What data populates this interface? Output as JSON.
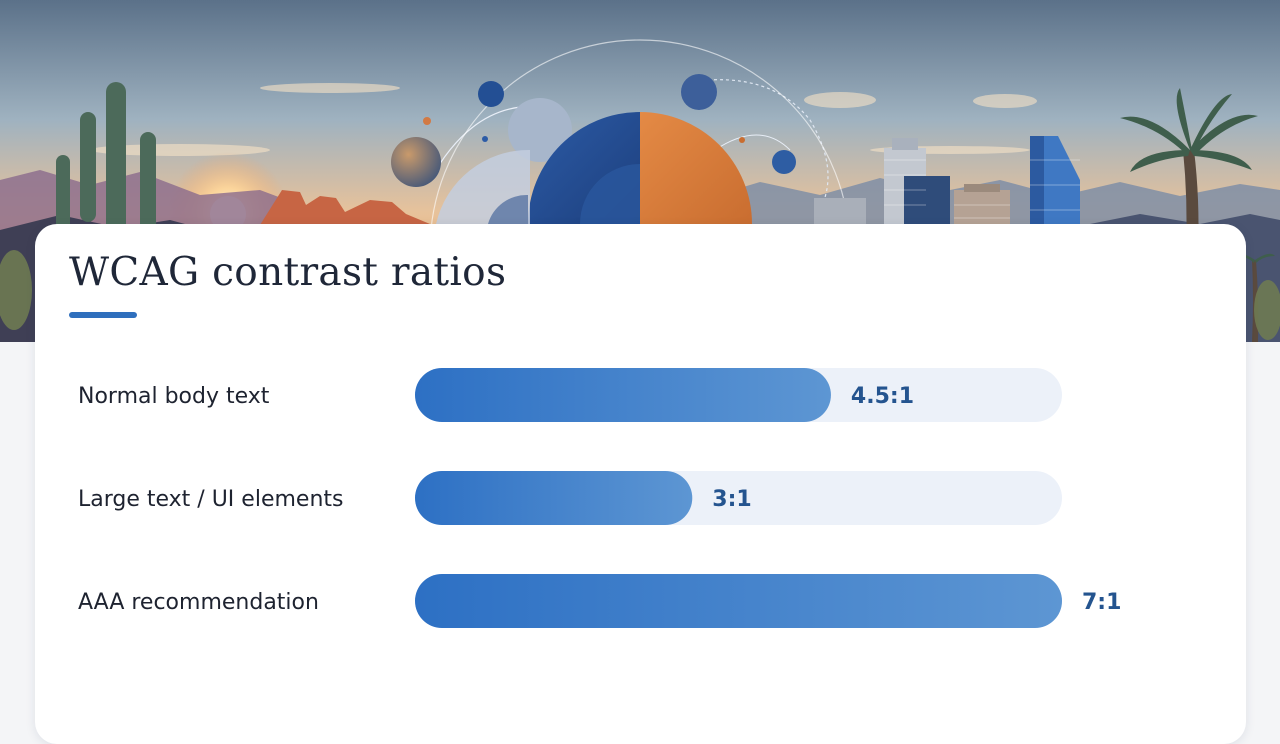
{
  "title": "WCAG contrast ratios",
  "colors": {
    "accent": "#2f6fbd",
    "bar_start": "#2d70c4",
    "bar_end": "#5d96d3",
    "track": "#ecf1f9",
    "value_text": "#24548f"
  },
  "banner": {
    "description_icons": [
      "saguaro-cactus-icon",
      "palm-tree-icon",
      "city-skyline-icon",
      "orbit-sphere-icon"
    ]
  },
  "chart_data": {
    "type": "bar",
    "orientation": "horizontal",
    "title": "WCAG contrast ratios",
    "categories": [
      "Normal body text",
      "Large text / UI elements",
      "AAA recommendation"
    ],
    "values": [
      4.5,
      3,
      7
    ],
    "value_labels": [
      "4.5:1",
      "3:1",
      "7:1"
    ],
    "xlim": [
      0,
      7
    ],
    "grid": false,
    "legend": "none"
  }
}
